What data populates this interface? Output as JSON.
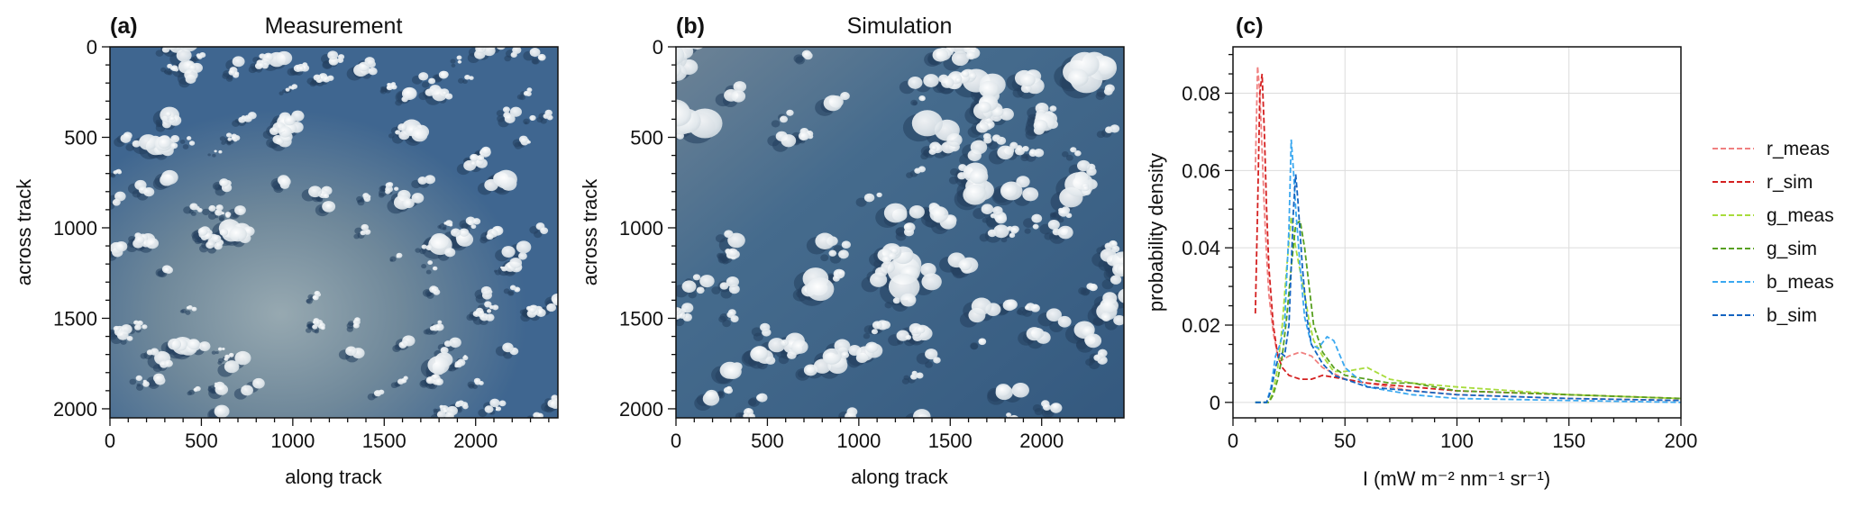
{
  "panels": {
    "a": {
      "label": "(a)",
      "title": "Measurement",
      "xlabel": "along track",
      "ylabel": "across track"
    },
    "b": {
      "label": "(b)",
      "title": "Simulation",
      "xlabel": "along track",
      "ylabel": "across track"
    },
    "c": {
      "label": "(c)",
      "title": "",
      "xlabel": "I (mW m⁻² nm⁻¹ sr⁻¹)",
      "ylabel": "probability density"
    }
  },
  "image_axes": {
    "x_ticks": [
      "0",
      "500",
      "1000",
      "1500",
      "2000"
    ],
    "y_ticks": [
      "0",
      "500",
      "1000",
      "1500",
      "2000"
    ],
    "xlim": [
      0,
      2450
    ],
    "ylim": [
      0,
      2050
    ]
  },
  "colors": {
    "ocean": "#3f6690",
    "ocean_dark": "#2f557d",
    "sunglint": "#8ea3ae",
    "cloud": "#eef2f4",
    "cloud_shadow": "#24405e",
    "r_meas": "#f08080",
    "r_sim": "#d42020",
    "g_meas": "#a8dc3c",
    "g_sim": "#58a020",
    "b_meas": "#3aa8f0",
    "b_sim": "#1464c0"
  },
  "chart_data": [
    {
      "type": "image",
      "panel": "a",
      "title": "Measurement",
      "xlabel": "along track",
      "ylabel": "across track",
      "xlim": [
        0,
        2450
      ],
      "ylim": [
        2050,
        0
      ],
      "x_ticks": [
        0,
        500,
        1000,
        1500,
        2000
      ],
      "y_ticks": [
        0,
        500,
        1000,
        1500,
        2000
      ]
    },
    {
      "type": "image",
      "panel": "b",
      "title": "Simulation",
      "xlabel": "along track",
      "ylabel": "across track",
      "xlim": [
        0,
        2450
      ],
      "ylim": [
        2050,
        0
      ],
      "x_ticks": [
        0,
        500,
        1000,
        1500,
        2000
      ],
      "y_ticks": [
        0,
        500,
        1000,
        1500,
        2000
      ]
    },
    {
      "type": "line",
      "panel": "c",
      "xlabel": "I (mW m⁻² nm⁻¹ sr⁻¹)",
      "ylabel": "probability density",
      "xlim": [
        0,
        200
      ],
      "ylim": [
        -0.004,
        0.092
      ],
      "x_ticks": [
        0,
        50,
        100,
        150,
        200
      ],
      "y_ticks": [
        0,
        0.02,
        0.04,
        0.06,
        0.08
      ],
      "x_tick_labels": [
        "0",
        "50",
        "100",
        "150",
        "200"
      ],
      "y_tick_labels": [
        "0",
        "0.02",
        "0.04",
        "0.06",
        "0.08"
      ],
      "grid": true,
      "legend_position": "right",
      "series": [
        {
          "name": "r_meas",
          "color_key": "r_meas",
          "x": [
            10,
            11,
            12,
            13,
            14,
            15,
            16,
            18,
            20,
            22,
            25,
            30,
            35,
            40,
            50,
            60,
            80,
            100,
            150,
            200
          ],
          "y": [
            0.06,
            0.087,
            0.08,
            0.065,
            0.05,
            0.038,
            0.028,
            0.018,
            0.012,
            0.011,
            0.012,
            0.013,
            0.012,
            0.009,
            0.006,
            0.005,
            0.003,
            0.002,
            0.001,
            0.0005
          ]
        },
        {
          "name": "r_sim",
          "color_key": "r_sim",
          "x": [
            10,
            11,
            12,
            13,
            14,
            15,
            16,
            18,
            20,
            22,
            25,
            30,
            35,
            40,
            50,
            60,
            80,
            100,
            150,
            200
          ],
          "y": [
            0.023,
            0.05,
            0.08,
            0.085,
            0.07,
            0.05,
            0.035,
            0.02,
            0.012,
            0.009,
            0.007,
            0.006,
            0.006,
            0.007,
            0.006,
            0.005,
            0.004,
            0.003,
            0.002,
            0.001
          ]
        },
        {
          "name": "g_meas",
          "color_key": "g_meas",
          "x": [
            10,
            16,
            18,
            20,
            22,
            24,
            26,
            28,
            30,
            32,
            34,
            36,
            40,
            45,
            50,
            60,
            70,
            80,
            100,
            150,
            200
          ],
          "y": [
            0,
            0,
            0.003,
            0.009,
            0.02,
            0.035,
            0.048,
            0.04,
            0.034,
            0.028,
            0.021,
            0.016,
            0.012,
            0.008,
            0.008,
            0.009,
            0.006,
            0.005,
            0.004,
            0.002,
            0.001
          ]
        },
        {
          "name": "g_sim",
          "color_key": "g_sim",
          "x": [
            10,
            16,
            18,
            20,
            22,
            24,
            26,
            28,
            30,
            32,
            34,
            36,
            40,
            45,
            50,
            60,
            70,
            80,
            100,
            150,
            200
          ],
          "y": [
            0,
            0,
            0.002,
            0.006,
            0.012,
            0.022,
            0.035,
            0.046,
            0.047,
            0.04,
            0.03,
            0.02,
            0.013,
            0.009,
            0.007,
            0.006,
            0.005,
            0.005,
            0.003,
            0.002,
            0.001
          ]
        },
        {
          "name": "b_meas",
          "color_key": "b_meas",
          "x": [
            10,
            15,
            17,
            19,
            21,
            23,
            25,
            26,
            27,
            28,
            30,
            32,
            35,
            38,
            42,
            45,
            50,
            60,
            80,
            100,
            150,
            200
          ],
          "y": [
            0,
            0,
            0.004,
            0.012,
            0.015,
            0.02,
            0.045,
            0.068,
            0.06,
            0.05,
            0.035,
            0.022,
            0.015,
            0.014,
            0.017,
            0.016,
            0.009,
            0.004,
            0.002,
            0.001,
            0.0005,
            0
          ]
        },
        {
          "name": "b_sim",
          "color_key": "b_sim",
          "x": [
            10,
            15,
            17,
            19,
            21,
            23,
            25,
            26,
            27,
            28,
            29,
            31,
            33,
            35,
            40,
            45,
            50,
            60,
            80,
            100,
            150,
            200
          ],
          "y": [
            0,
            0,
            0.003,
            0.009,
            0.013,
            0.012,
            0.02,
            0.035,
            0.05,
            0.059,
            0.052,
            0.035,
            0.022,
            0.015,
            0.01,
            0.007,
            0.006,
            0.004,
            0.003,
            0.002,
            0.001,
            0.0005
          ]
        }
      ]
    }
  ]
}
